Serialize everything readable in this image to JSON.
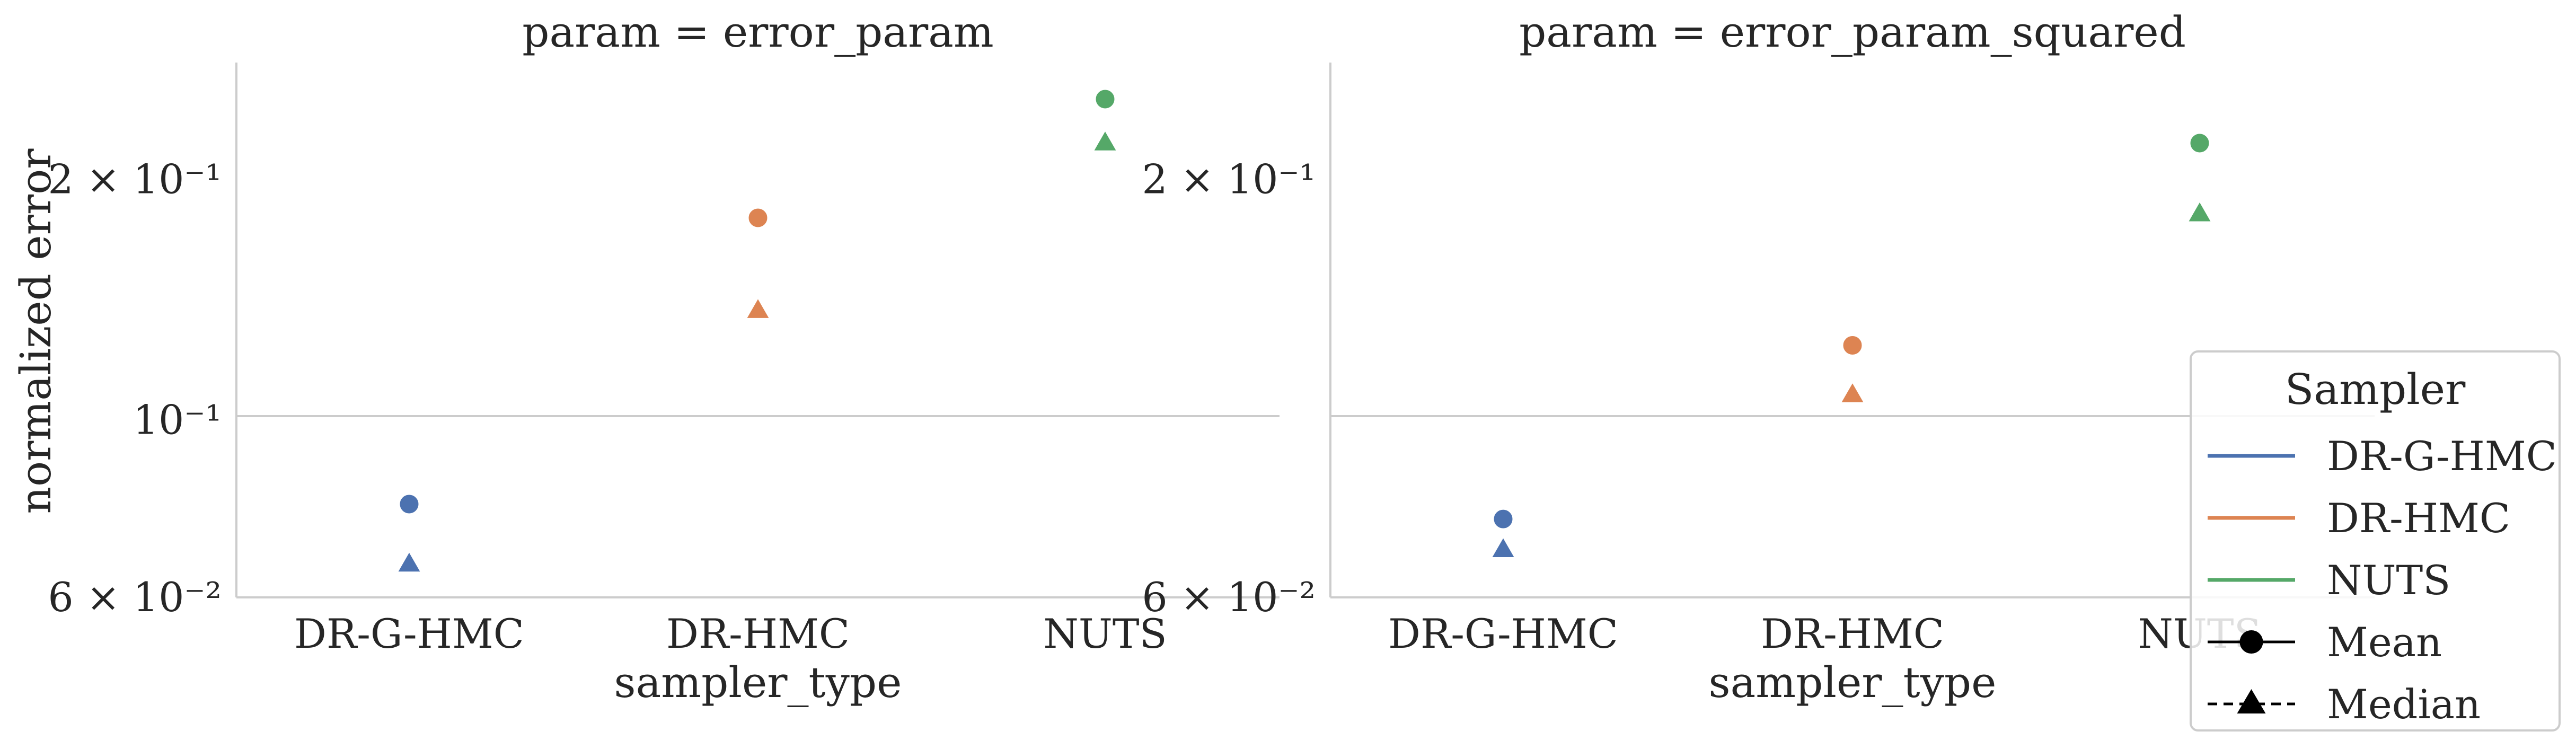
{
  "chart_data": [
    {
      "type": "scatter",
      "title": "param = error_param",
      "xlabel": "sampler_type",
      "ylabel": "normalized error",
      "yscale": "log",
      "ylim": [
        0.06,
        0.28
      ],
      "y_ticks": [
        {
          "value": 0.06,
          "label": "6 × 10⁻²"
        },
        {
          "value": 0.1,
          "label": "10⁻¹"
        },
        {
          "value": 0.2,
          "label": "2 × 10⁻¹"
        }
      ],
      "grid": "horizontal at 10⁻¹",
      "categories": [
        "DR-G-HMC",
        "DR-HMC",
        "NUTS"
      ],
      "series": [
        {
          "sampler": "DR-G-HMC",
          "color": "#4c72b0",
          "mean": 0.0785,
          "median": 0.066
        },
        {
          "sampler": "DR-HMC",
          "color": "#dd8452",
          "mean": 0.179,
          "median": 0.137
        },
        {
          "sampler": "NUTS",
          "color": "#55a868",
          "mean": 0.252,
          "median": 0.222
        }
      ]
    },
    {
      "type": "scatter",
      "title": "param = error_param_squared",
      "xlabel": "sampler_type",
      "ylabel": "",
      "yscale": "log",
      "ylim": [
        0.06,
        0.28
      ],
      "y_ticks": [
        {
          "value": 0.06,
          "label": "6 × 10⁻²"
        },
        {
          "value": 0.2,
          "label": "2 × 10⁻¹"
        }
      ],
      "grid": "horizontal at 10⁻¹",
      "categories": [
        "DR-G-HMC",
        "DR-HMC",
        "NUTS"
      ],
      "series": [
        {
          "sampler": "DR-G-HMC",
          "color": "#4c72b0",
          "mean": 0.0752,
          "median": 0.0688
        },
        {
          "sampler": "DR-HMC",
          "color": "#dd8452",
          "mean": 0.124,
          "median": 0.1075
        },
        {
          "sampler": "NUTS",
          "color": "#55a868",
          "mean": 0.222,
          "median": 0.181
        }
      ]
    }
  ],
  "legend": {
    "title": "Sampler",
    "placement": "right",
    "entries": [
      {
        "label": "DR-G-HMC",
        "color": "#4c72b0",
        "style": "line"
      },
      {
        "label": "DR-HMC",
        "color": "#dd8452",
        "style": "line"
      },
      {
        "label": "NUTS",
        "color": "#55a868",
        "style": "line"
      },
      {
        "label": "Mean",
        "color": "#000000",
        "style": "solid-circle"
      },
      {
        "label": "Median",
        "color": "#000000",
        "style": "dashed-triangle"
      }
    ]
  }
}
